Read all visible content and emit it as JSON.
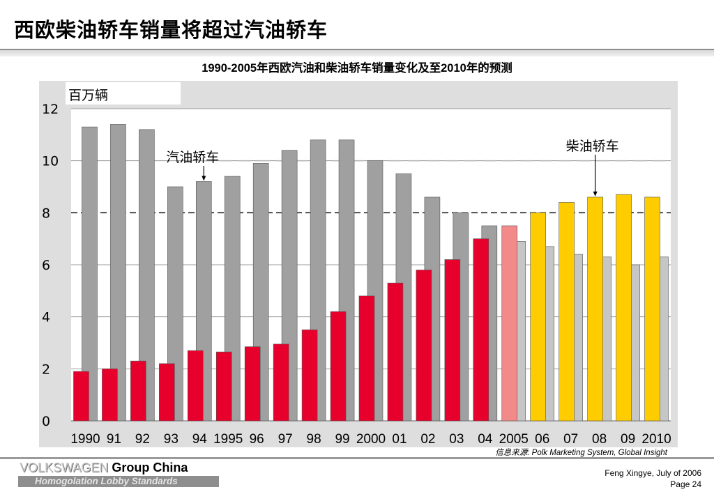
{
  "page": {
    "title": "西欧柴油轿车销量将超过汽油轿车",
    "source": "信息来源: Polk Marketing System, Global Insight",
    "footer": {
      "brand_vw": "VOLKSWAGEN",
      "brand_group": "Group China",
      "subtitle": "Homogolation Lobby Standards",
      "author": "Feng Xingye, July of  2006",
      "page_label": "Page 24"
    }
  },
  "colors": {
    "gasoline_actual": "#a0a0a0",
    "gasoline_forecast": "#c6c6c6",
    "diesel_actual": "#e8002c",
    "diesel_2005": "#f28a8a",
    "diesel_forecast": "#ffcc00",
    "plot_bg": "#dedede"
  },
  "chart_data": {
    "type": "bar",
    "title": "1990-2005年西欧汽油和柴油轿车销量变化及至2010年的预测",
    "ylabel": "百万辆",
    "xlabel": "",
    "ylim": [
      0,
      12
    ],
    "yticks": [
      0,
      2,
      4,
      6,
      8,
      10,
      12
    ],
    "grid": "horizontal lines at every tick; dashed line at 8",
    "categories": [
      "1990",
      "91",
      "92",
      "93",
      "94",
      "1995",
      "96",
      "97",
      "98",
      "99",
      "2000",
      "01",
      "02",
      "03",
      "04",
      "2005",
      "06",
      "07",
      "08",
      "09",
      "2010"
    ],
    "series": [
      {
        "name": "汽油轿车",
        "values": [
          11.3,
          11.4,
          11.2,
          9.0,
          9.2,
          9.4,
          9.9,
          10.4,
          10.8,
          10.8,
          10.0,
          9.5,
          8.6,
          8.0,
          7.5,
          6.9,
          6.7,
          6.4,
          6.3,
          6.0,
          6.3
        ]
      },
      {
        "name": "柴油轿车",
        "values": [
          1.9,
          2.0,
          2.3,
          2.2,
          2.7,
          2.65,
          2.85,
          2.95,
          3.5,
          4.2,
          4.8,
          5.3,
          5.8,
          6.2,
          7.0,
          7.5,
          8.0,
          8.4,
          8.6,
          8.7,
          8.6
        ]
      }
    ],
    "forecast_from_index": 15,
    "annotations": [
      {
        "text": "汽油轿车",
        "points_to": "94"
      },
      {
        "text": "柴油轿车",
        "points_to": "08"
      }
    ]
  }
}
